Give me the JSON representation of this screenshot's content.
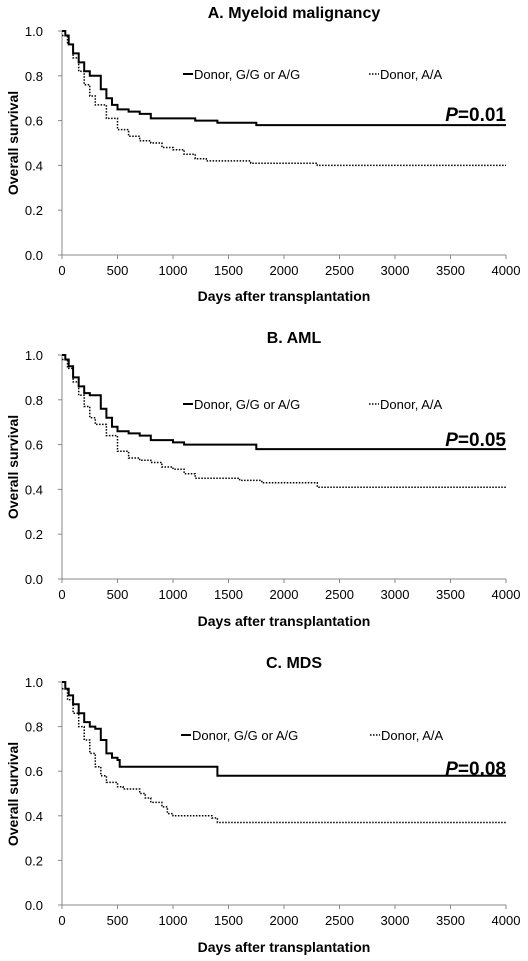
{
  "chart_data": [
    {
      "type": "line",
      "title": "A. Myeloid malignancy",
      "xlabel": "Days after transplantation",
      "ylabel": "Overall survival",
      "xlim": [
        0,
        4000
      ],
      "ylim": [
        0,
        1.0
      ],
      "x_ticks": [
        "0",
        "500",
        "1000",
        "1500",
        "2000",
        "2500",
        "3000",
        "3500",
        "4000"
      ],
      "y_ticks": [
        "0.0",
        "0.2",
        "0.4",
        "0.6",
        "0.8",
        "1.0"
      ],
      "legend_position": "top-right",
      "annotation": {
        "p_label": "P",
        "p_value": "=0.01"
      },
      "series": [
        {
          "name": "Donor, G/G or A/G",
          "style": "solid",
          "points": [
            [
              0,
              1.0
            ],
            [
              30,
              0.98
            ],
            [
              60,
              0.94
            ],
            [
              100,
              0.9
            ],
            [
              150,
              0.86
            ],
            [
              200,
              0.82
            ],
            [
              250,
              0.8
            ],
            [
              300,
              0.8
            ],
            [
              350,
              0.74
            ],
            [
              400,
              0.7
            ],
            [
              450,
              0.67
            ],
            [
              500,
              0.65
            ],
            [
              600,
              0.64
            ],
            [
              700,
              0.63
            ],
            [
              800,
              0.61
            ],
            [
              1000,
              0.61
            ],
            [
              1200,
              0.6
            ],
            [
              1400,
              0.59
            ],
            [
              1750,
              0.58
            ],
            [
              4000,
              0.58
            ]
          ]
        },
        {
          "name": "Donor, A/A",
          "style": "dotted",
          "points": [
            [
              0,
              0.98
            ],
            [
              50,
              0.94
            ],
            [
              100,
              0.88
            ],
            [
              150,
              0.82
            ],
            [
              200,
              0.76
            ],
            [
              250,
              0.71
            ],
            [
              300,
              0.67
            ],
            [
              400,
              0.61
            ],
            [
              500,
              0.56
            ],
            [
              600,
              0.53
            ],
            [
              700,
              0.51
            ],
            [
              800,
              0.5
            ],
            [
              900,
              0.48
            ],
            [
              1000,
              0.47
            ],
            [
              1100,
              0.45
            ],
            [
              1200,
              0.43
            ],
            [
              1300,
              0.42
            ],
            [
              1700,
              0.41
            ],
            [
              2300,
              0.4
            ],
            [
              4000,
              0.4
            ]
          ]
        }
      ]
    },
    {
      "type": "line",
      "title": "B. AML",
      "xlabel": "Days after transplantation",
      "ylabel": "Overall survival",
      "xlim": [
        0,
        4000
      ],
      "ylim": [
        0,
        1.0
      ],
      "x_ticks": [
        "0",
        "500",
        "1000",
        "1500",
        "2000",
        "2500",
        "3000",
        "3500",
        "4000"
      ],
      "y_ticks": [
        "0.0",
        "0.2",
        "0.4",
        "0.6",
        "0.8",
        "1.0"
      ],
      "legend_position": "top-right",
      "annotation": {
        "p_label": "P",
        "p_value": "=0.05"
      },
      "series": [
        {
          "name": "Donor, G/G or A/G",
          "style": "solid",
          "points": [
            [
              0,
              1.0
            ],
            [
              30,
              0.98
            ],
            [
              60,
              0.95
            ],
            [
              100,
              0.9
            ],
            [
              150,
              0.86
            ],
            [
              200,
              0.83
            ],
            [
              250,
              0.82
            ],
            [
              300,
              0.82
            ],
            [
              350,
              0.76
            ],
            [
              400,
              0.72
            ],
            [
              450,
              0.68
            ],
            [
              500,
              0.66
            ],
            [
              600,
              0.65
            ],
            [
              700,
              0.64
            ],
            [
              800,
              0.62
            ],
            [
              1000,
              0.61
            ],
            [
              1100,
              0.6
            ],
            [
              1400,
              0.6
            ],
            [
              1750,
              0.58
            ],
            [
              4000,
              0.58
            ]
          ]
        },
        {
          "name": "Donor, A/A",
          "style": "dotted",
          "points": [
            [
              0,
              0.98
            ],
            [
              50,
              0.94
            ],
            [
              100,
              0.88
            ],
            [
              150,
              0.82
            ],
            [
              200,
              0.77
            ],
            [
              250,
              0.72
            ],
            [
              300,
              0.69
            ],
            [
              400,
              0.64
            ],
            [
              500,
              0.57
            ],
            [
              600,
              0.54
            ],
            [
              700,
              0.53
            ],
            [
              800,
              0.52
            ],
            [
              900,
              0.5
            ],
            [
              1000,
              0.49
            ],
            [
              1100,
              0.47
            ],
            [
              1200,
              0.45
            ],
            [
              1600,
              0.44
            ],
            [
              1800,
              0.43
            ],
            [
              2300,
              0.41
            ],
            [
              4000,
              0.41
            ]
          ]
        }
      ]
    },
    {
      "type": "line",
      "title": "C. MDS",
      "xlabel": "Days after transplantation",
      "ylabel": "Overall survival",
      "xlim": [
        0,
        4000
      ],
      "ylim": [
        0,
        1.0
      ],
      "x_ticks": [
        "0",
        "500",
        "1000",
        "1500",
        "2000",
        "2500",
        "3000",
        "3500",
        "4000"
      ],
      "y_ticks": [
        "0.0",
        "0.2",
        "0.4",
        "0.6",
        "0.8",
        "1.0"
      ],
      "legend_position": "top-right",
      "annotation": {
        "p_label": "P",
        "p_value": "=0.08"
      },
      "series": [
        {
          "name": "Donor, G/G or A/G",
          "style": "solid",
          "points": [
            [
              0,
              1.0
            ],
            [
              30,
              0.97
            ],
            [
              60,
              0.94
            ],
            [
              100,
              0.9
            ],
            [
              150,
              0.86
            ],
            [
              200,
              0.82
            ],
            [
              250,
              0.8
            ],
            [
              300,
              0.79
            ],
            [
              350,
              0.74
            ],
            [
              400,
              0.68
            ],
            [
              450,
              0.66
            ],
            [
              500,
              0.65
            ],
            [
              520,
              0.62
            ],
            [
              1350,
              0.62
            ],
            [
              1400,
              0.58
            ],
            [
              4000,
              0.58
            ]
          ]
        },
        {
          "name": "Donor, A/A",
          "style": "dotted",
          "points": [
            [
              0,
              0.97
            ],
            [
              50,
              0.92
            ],
            [
              100,
              0.86
            ],
            [
              150,
              0.8
            ],
            [
              200,
              0.74
            ],
            [
              250,
              0.68
            ],
            [
              300,
              0.62
            ],
            [
              350,
              0.58
            ],
            [
              400,
              0.55
            ],
            [
              500,
              0.53
            ],
            [
              550,
              0.52
            ],
            [
              700,
              0.5
            ],
            [
              750,
              0.48
            ],
            [
              800,
              0.46
            ],
            [
              900,
              0.44
            ],
            [
              950,
              0.41
            ],
            [
              1000,
              0.4
            ],
            [
              1350,
              0.39
            ],
            [
              1400,
              0.37
            ],
            [
              4000,
              0.37
            ]
          ]
        }
      ]
    }
  ]
}
